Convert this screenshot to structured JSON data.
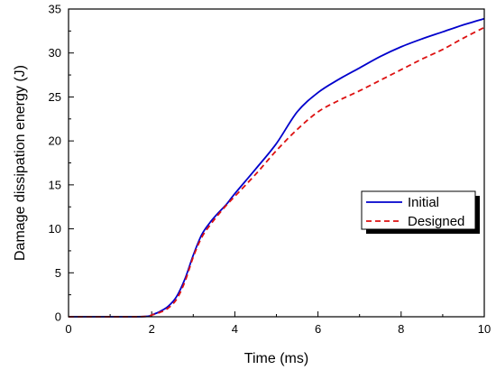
{
  "chart_data": {
    "type": "line",
    "title": "",
    "xlabel": "Time (ms)",
    "ylabel": "Damage dissipation energy (J)",
    "xlim": [
      0,
      10
    ],
    "ylim": [
      0,
      35
    ],
    "xticks": [
      0,
      2,
      4,
      6,
      8,
      10
    ],
    "yticks": [
      0,
      5,
      10,
      15,
      20,
      25,
      30,
      35
    ],
    "grid": false,
    "legend_position": "right",
    "series": [
      {
        "name": "Initial",
        "color": "#0000cc",
        "line_style": "solid",
        "x": [
          0,
          1.5,
          1.9,
          2.0,
          2.2,
          2.4,
          2.6,
          2.8,
          3.0,
          3.2,
          3.4,
          3.6,
          3.8,
          4.0,
          4.5,
          5.0,
          5.5,
          6.0,
          6.5,
          7.0,
          7.5,
          8.0,
          8.5,
          9.0,
          9.5,
          10.0
        ],
        "y": [
          0,
          0,
          0.05,
          0.2,
          0.6,
          1.2,
          2.3,
          4.3,
          7.0,
          9.3,
          10.7,
          11.8,
          12.8,
          14.0,
          16.8,
          19.7,
          23.3,
          25.5,
          27.0,
          28.3,
          29.6,
          30.7,
          31.6,
          32.4,
          33.2,
          33.9
        ]
      },
      {
        "name": "Designed",
        "color": "#dd1111",
        "line_style": "dashed",
        "x": [
          0,
          1.5,
          1.9,
          2.0,
          2.2,
          2.4,
          2.6,
          2.8,
          3.0,
          3.2,
          3.4,
          3.6,
          3.8,
          4.0,
          4.5,
          5.0,
          5.5,
          6.0,
          6.5,
          7.0,
          7.5,
          8.0,
          8.5,
          9.0,
          9.5,
          10.0
        ],
        "y": [
          0,
          0,
          0.05,
          0.2,
          0.5,
          1.0,
          2.0,
          4.0,
          6.8,
          9.0,
          10.4,
          11.6,
          12.7,
          13.7,
          16.2,
          18.9,
          21.3,
          23.3,
          24.6,
          25.7,
          26.9,
          28.1,
          29.3,
          30.4,
          31.7,
          32.9
        ]
      }
    ]
  }
}
